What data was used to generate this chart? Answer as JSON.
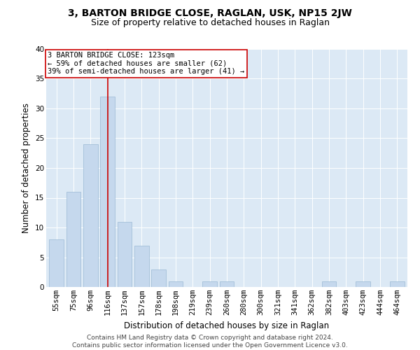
{
  "title1": "3, BARTON BRIDGE CLOSE, RAGLAN, USK, NP15 2JW",
  "title2": "Size of property relative to detached houses in Raglan",
  "xlabel": "Distribution of detached houses by size in Raglan",
  "ylabel": "Number of detached properties",
  "categories": [
    "55sqm",
    "75sqm",
    "96sqm",
    "116sqm",
    "137sqm",
    "157sqm",
    "178sqm",
    "198sqm",
    "219sqm",
    "239sqm",
    "260sqm",
    "280sqm",
    "300sqm",
    "321sqm",
    "341sqm",
    "362sqm",
    "382sqm",
    "403sqm",
    "423sqm",
    "444sqm",
    "464sqm"
  ],
  "values": [
    8,
    16,
    24,
    32,
    11,
    7,
    3,
    1,
    0,
    1,
    1,
    0,
    0,
    0,
    0,
    0,
    1,
    0,
    1,
    0,
    1
  ],
  "vline_x_index": 3,
  "bar_color": "#c5d8ed",
  "bar_edge_color": "#9ab8d4",
  "vline_color": "#cc0000",
  "annotation_text": "3 BARTON BRIDGE CLOSE: 123sqm\n← 59% of detached houses are smaller (62)\n39% of semi-detached houses are larger (41) →",
  "annotation_box_edge_color": "#cc0000",
  "plot_bg_color": "#dce9f5",
  "ylim": [
    0,
    40
  ],
  "yticks": [
    0,
    5,
    10,
    15,
    20,
    25,
    30,
    35,
    40
  ],
  "footer": "Contains HM Land Registry data © Crown copyright and database right 2024.\nContains public sector information licensed under the Open Government Licence v3.0.",
  "title1_fontsize": 10,
  "title2_fontsize": 9,
  "xlabel_fontsize": 8.5,
  "ylabel_fontsize": 8.5,
  "tick_fontsize": 7.5,
  "annotation_fontsize": 7.5,
  "footer_fontsize": 6.5
}
